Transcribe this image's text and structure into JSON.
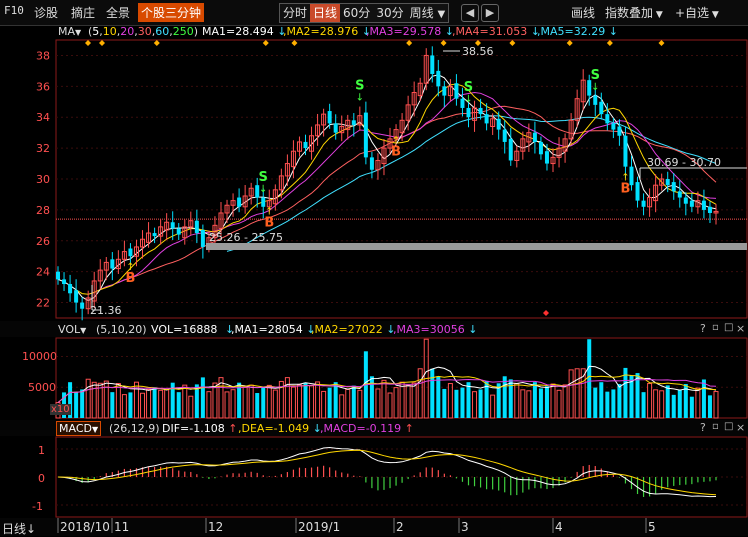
{
  "topbar": {
    "code_label": "F10",
    "tabs": [
      "诊股",
      "摘庄",
      "全景",
      "个股三分钟"
    ],
    "selected_tab": "个股三分钟",
    "periods": [
      "分时",
      "日线",
      "60分",
      "30分"
    ],
    "selected_period": "日线",
    "more_period": "周线",
    "right_buttons": [
      "画线",
      "指数叠加",
      "+自选"
    ]
  },
  "ma_legend": {
    "label": "MA",
    "params_prefix": "(",
    "params": [
      "5",
      "10",
      "20",
      "30",
      "60",
      "250"
    ],
    "params_suffix": ")",
    "items": [
      {
        "text": "MA1=28.494",
        "color": "#ffffff",
        "arrow": "↓"
      },
      {
        "text": "MA2=28.976",
        "color": "#ffd700",
        "arrow": "↓"
      },
      {
        "text": "MA3=29.578",
        "color": "#e040e0",
        "arrow": "↓"
      },
      {
        "text": "MA4=31.053",
        "color": "#ff6060",
        "arrow": "↓"
      },
      {
        "text": "MA5=32.29",
        "color": "#40e0ff",
        "arrow": "↓"
      }
    ]
  },
  "price_panel": {
    "y_ticks": [
      "38",
      "36",
      "34",
      "32",
      "30",
      "28",
      "26",
      "24",
      "22"
    ],
    "annotations": {
      "high": "38.56",
      "low": "21.36",
      "range1": "25.26 - 25.75",
      "range2": "30.69 - 30.70"
    },
    "signals": {
      "buy": "B",
      "sell": "S"
    }
  },
  "volume_panel": {
    "label": "VOL",
    "params": "(5,10,20)",
    "vol_text": "VOL=16888",
    "items": [
      {
        "text": "MA1=28054",
        "color": "#ffffff"
      },
      {
        "text": "MA2=27022",
        "color": "#ffd700"
      },
      {
        "text": "MA3=30056",
        "color": "#e040e0"
      }
    ],
    "y_ticks": [
      "10000",
      "5000"
    ],
    "unit": "x10"
  },
  "macd_panel": {
    "label": "MACD",
    "params": "(26,12,9)",
    "dif": "DIF=-1.108",
    "dea": "DEA=-1.049",
    "macd": "MACD=-0.119",
    "y_ticks": [
      "1",
      "0",
      "-1"
    ]
  },
  "x_axis": {
    "period_label": "日线",
    "ticks": [
      "2018/10",
      "11",
      "12",
      "2019/1",
      "2",
      "3",
      "4",
      "5"
    ]
  },
  "colors": {
    "up": "#ff5050",
    "down": "#00e0ff",
    "background": "#000000",
    "accent": "#d84a00"
  },
  "chart_data": {
    "type": "candlestick",
    "ylim": [
      21,
      39
    ],
    "high": 38.56,
    "low": 21.36,
    "close_approx": [
      23.5,
      23.2,
      22.6,
      22.0,
      21.6,
      22.3,
      23.4,
      24.1,
      24.6,
      24.2,
      24.8,
      25.3,
      25.0,
      25.6,
      26.1,
      26.5,
      26.3,
      26.9,
      27.2,
      26.8,
      26.4,
      26.9,
      27.3,
      26.5,
      25.6,
      26.2,
      27.0,
      27.8,
      28.3,
      28.6,
      28.2,
      28.9,
      29.4,
      28.8,
      28.2,
      28.6,
      29.3,
      30.2,
      31.0,
      31.8,
      32.4,
      32.0,
      32.8,
      33.5,
      34.2,
      33.6,
      33.0,
      33.4,
      33.8,
      33.5,
      34.1,
      31.4,
      30.6,
      31.2,
      32.0,
      32.6,
      33.2,
      33.8,
      34.8,
      35.6,
      36.2,
      38.0,
      36.8,
      36.0,
      35.4,
      36.0,
      35.2,
      34.6,
      34.0,
      34.6,
      34.2,
      33.6,
      33.9,
      33.2,
      32.4,
      31.2,
      31.8,
      32.6,
      33.0,
      32.4,
      31.6,
      31.0,
      31.4,
      32.0,
      32.6,
      33.8,
      35.2,
      36.4,
      35.4,
      34.8,
      34.2,
      33.6,
      33.2,
      32.8,
      30.8,
      29.6,
      28.6,
      28.2,
      28.8,
      29.6,
      30.0,
      29.6,
      29.2,
      28.8,
      28.4,
      28.2,
      28.6,
      28.0,
      27.8,
      27.9
    ],
    "series": [
      {
        "name": "MA5",
        "color": "#40e0ff"
      },
      {
        "name": "MA4",
        "color": "#ff6060"
      },
      {
        "name": "MA3",
        "color": "#e040e0"
      },
      {
        "name": "MA2",
        "color": "#ffd700"
      },
      {
        "name": "MA1",
        "color": "#ffffff"
      }
    ]
  }
}
